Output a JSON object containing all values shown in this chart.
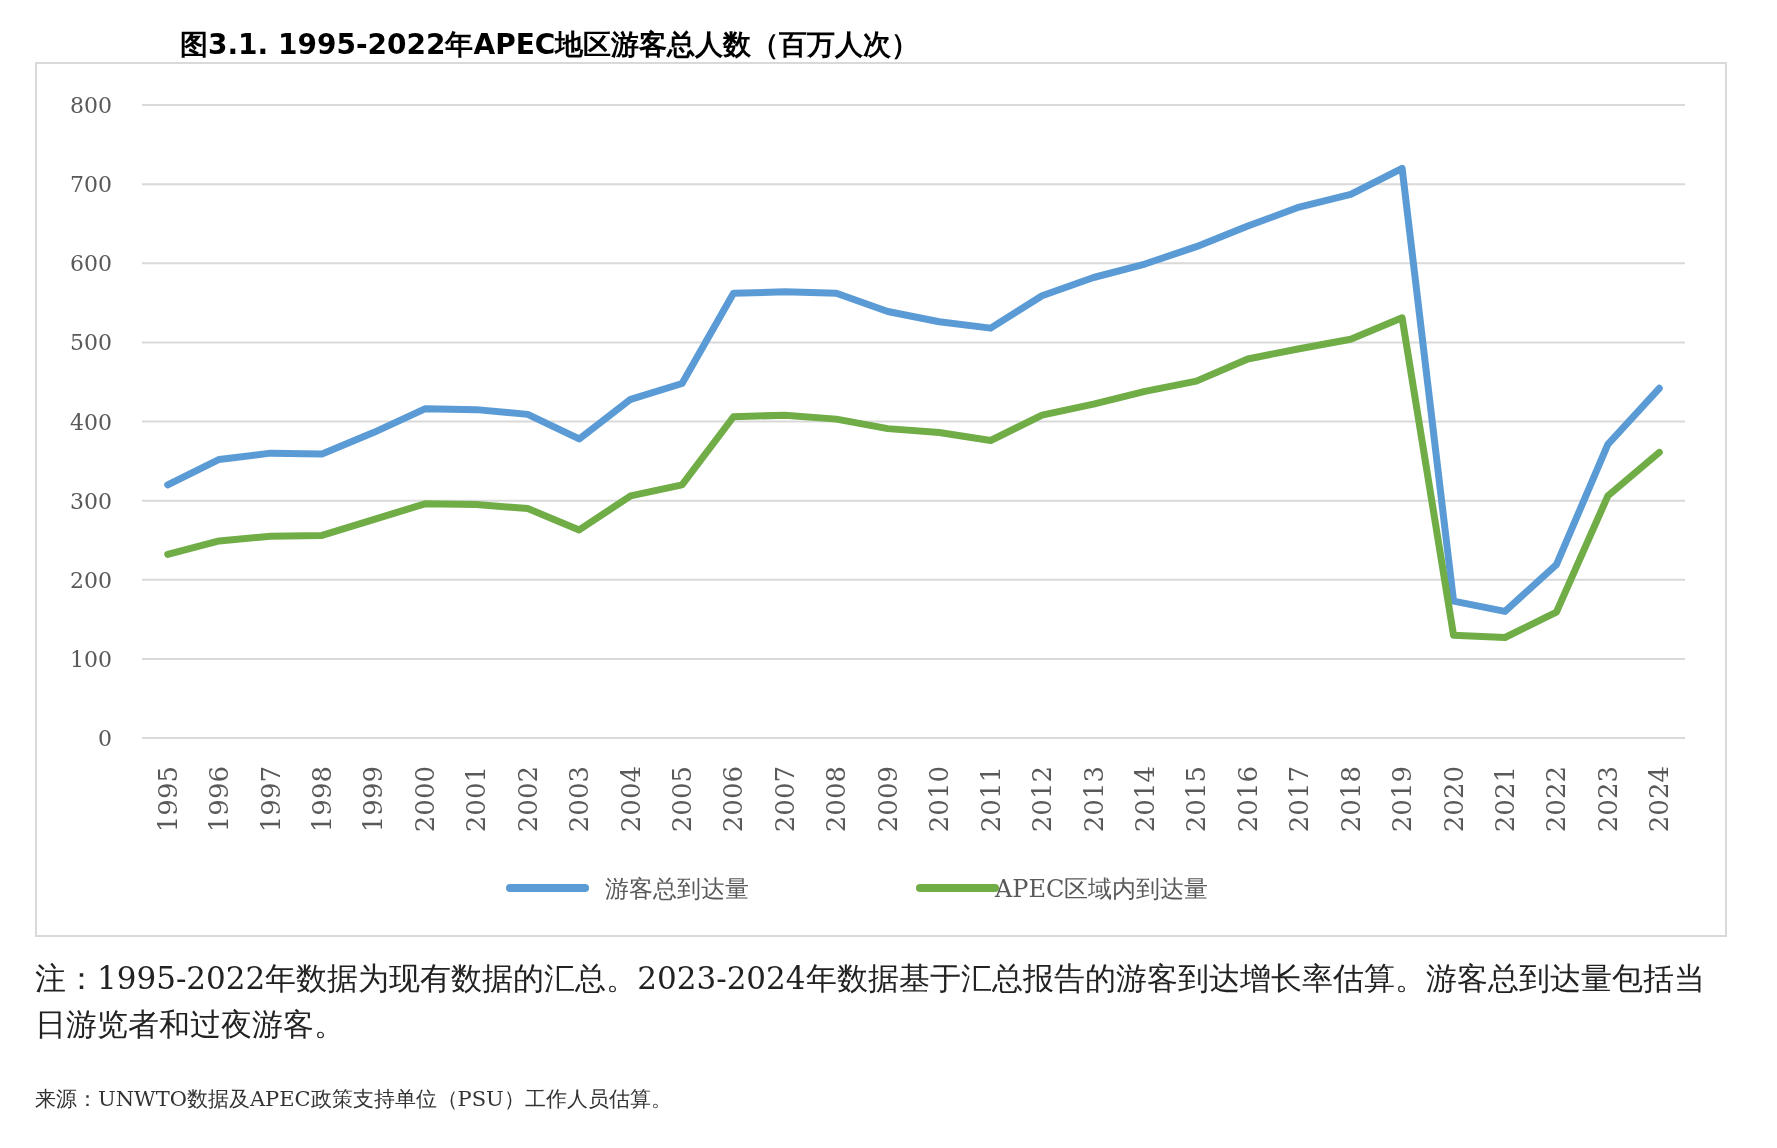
{
  "chart_data": {
    "type": "line",
    "title": "图3.1. 1995-2022年APEC地区游客总人数（百万人次）",
    "annotations": [
      "注：1995-2022年数据为现有数据的汇总。2023-2024年数据基于汇总报告的游客到达增长率估算。游客总到达量包括当日游览者和过夜游客。",
      "来源：UNWTO数据及APEC政策支持单位（PSU）工作人员估算。"
    ],
    "categories": [
      "1995",
      "1996",
      "1997",
      "1998",
      "1999",
      "2000",
      "2001",
      "2002",
      "2003",
      "2004",
      "2005",
      "2006",
      "2007",
      "2008",
      "2009",
      "2010",
      "2011",
      "2012",
      "2013",
      "2014",
      "2015",
      "2016",
      "2017",
      "2018",
      "2019",
      "2020",
      "2021",
      "2022",
      "2023",
      "2024"
    ],
    "series": [
      {
        "name": "游客总到达量",
        "color": "#5b9bd5",
        "values": [
          320,
          352,
          360,
          359,
          386,
          416,
          415,
          409,
          378,
          428,
          448,
          562,
          564,
          562,
          539,
          526,
          518,
          559,
          582,
          599,
          621,
          647,
          671,
          687,
          720,
          173,
          160,
          219,
          371,
          442
        ]
      },
      {
        "name": "APEC区域内到达量",
        "color": "#70ad47",
        "values": [
          232,
          249,
          255,
          256,
          276,
          296,
          295,
          290,
          263,
          306,
          320,
          406,
          408,
          403,
          391,
          386,
          376,
          408,
          422,
          438,
          451,
          479,
          492,
          504,
          531,
          130,
          127,
          159,
          306,
          361
        ]
      }
    ],
    "ylim": [
      0,
      800
    ],
    "yticks": [
      0,
      100,
      200,
      300,
      400,
      500,
      600,
      700,
      800
    ],
    "grid": "y",
    "legend": "bottom",
    "line_style": "solid",
    "marker": "none"
  }
}
